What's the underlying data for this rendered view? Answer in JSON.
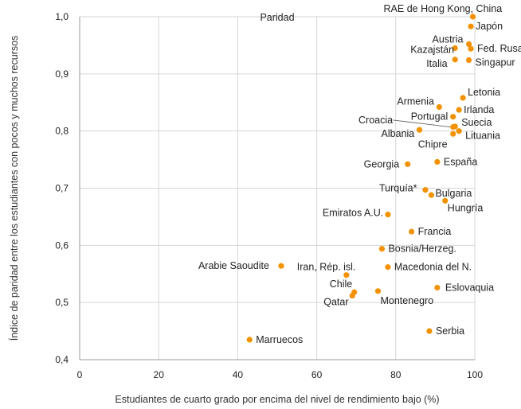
{
  "chart_data": {
    "type": "scatter",
    "xlabel": "Estudiantes de cuarto grado por encima del nivel de rendimiento bajo (%)",
    "ylabel": "Índice de paridad entre los estudiantes con pocos y muchos recursos",
    "xlim": [
      0,
      100
    ],
    "ylim": [
      0.4,
      1.0
    ],
    "x_ticks": [
      "0",
      "20",
      "40",
      "60",
      "80",
      "100"
    ],
    "y_ticks": [
      "0,4",
      "0,5",
      "0,6",
      "0,7",
      "0,8",
      "0,9",
      "1,0"
    ],
    "grid": true,
    "reference_line_label": "Paridad",
    "marker_color": "#F39200",
    "points": [
      {
        "label": "RAE de Hong Kong, China",
        "x": 99.5,
        "y": 1.0
      },
      {
        "label": "Japón",
        "x": 99,
        "y": 0.983
      },
      {
        "label": "Austria",
        "x": 98.5,
        "y": 0.952
      },
      {
        "label": "Kazajstán",
        "x": 95,
        "y": 0.945
      },
      {
        "label": "Fed. Rusa",
        "x": 99,
        "y": 0.944
      },
      {
        "label": "Italia",
        "x": 95,
        "y": 0.925
      },
      {
        "label": "Singapur",
        "x": 98.5,
        "y": 0.924
      },
      {
        "label": "Letonia",
        "x": 97,
        "y": 0.858
      },
      {
        "label": "Armenia",
        "x": 91,
        "y": 0.842
      },
      {
        "label": "Irlanda",
        "x": 96,
        "y": 0.837
      },
      {
        "label": "Portugal",
        "x": 94.5,
        "y": 0.825
      },
      {
        "label": "Croacia",
        "x": 94.5,
        "y": 0.807
      },
      {
        "label": "Suecia",
        "x": 95,
        "y": 0.808
      },
      {
        "label": "Albania",
        "x": 86,
        "y": 0.802
      },
      {
        "label": "Lituania",
        "x": 96,
        "y": 0.8
      },
      {
        "label": "Chipre",
        "x": 94.5,
        "y": 0.795
      },
      {
        "label": "Georgia",
        "x": 83,
        "y": 0.742
      },
      {
        "label": "España",
        "x": 90.5,
        "y": 0.746
      },
      {
        "label": "Turquía*",
        "x": 87.5,
        "y": 0.697
      },
      {
        "label": "Bulgaria",
        "x": 89,
        "y": 0.688
      },
      {
        "label": "Hungría",
        "x": 92.5,
        "y": 0.678
      },
      {
        "label": "Emiratos A.U.",
        "x": 78,
        "y": 0.654
      },
      {
        "label": "Francia",
        "x": 84,
        "y": 0.624
      },
      {
        "label": "Bosnia/Herzeg.",
        "x": 76.5,
        "y": 0.594
      },
      {
        "label": "Arabie Saoudite",
        "x": 51,
        "y": 0.564
      },
      {
        "label": "Iran, Rép. isl.",
        "x": 67.5,
        "y": 0.548
      },
      {
        "label": "Macedonia del N.",
        "x": 78,
        "y": 0.562
      },
      {
        "label": "Eslovaquia",
        "x": 90.5,
        "y": 0.526
      },
      {
        "label": "Chile",
        "x": 69.5,
        "y": 0.518
      },
      {
        "label": "Montenegro",
        "x": 75.5,
        "y": 0.52
      },
      {
        "label": "Qatar",
        "x": 69,
        "y": 0.512
      },
      {
        "label": "Serbia",
        "x": 88.5,
        "y": 0.45
      },
      {
        "label": "Marruecos",
        "x": 43,
        "y": 0.435
      }
    ]
  }
}
